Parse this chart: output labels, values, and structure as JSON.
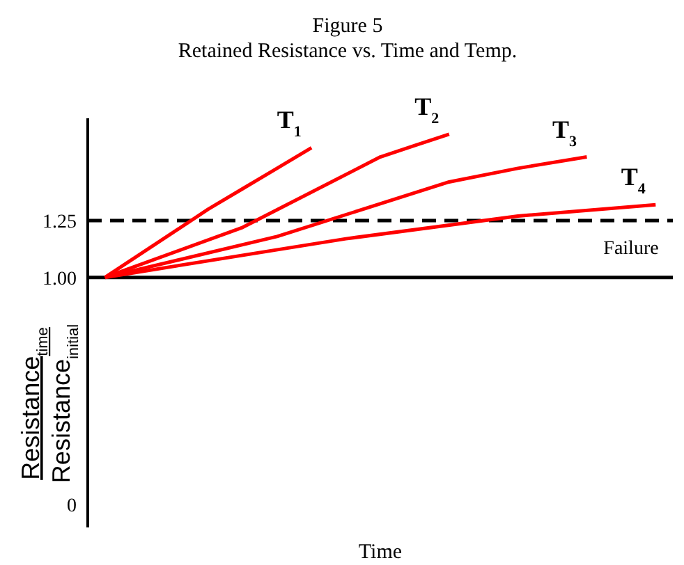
{
  "chart_data": {
    "type": "line",
    "title": "Figure 5",
    "subtitle": "Retained Resistance vs. Time and Temp.",
    "xlabel": "Time",
    "ylabel": "Resistance$_{time}$\nResistance$_{initial}$",
    "categories": [
      null,
      null,
      null,
      null,
      null,
      null,
      null,
      null,
      null,
      null,
      null,
      null,
      null,
      null,
      null,
      null,
      null
    ],
    "series": [
      {
        "name": "T$_{1}$",
        "color": "#ff0000",
        "values": [
          1.0,
          null,
          1.2,
          1.3,
          1.39,
          1.48,
          1.57,
          null,
          null,
          null,
          null,
          null,
          null,
          null,
          null,
          null,
          null
        ]
      },
      {
        "name": "T$_{2}$",
        "color": "#ff0000",
        "values": [
          1.0,
          null,
          null,
          null,
          1.22,
          null,
          null,
          null,
          1.53,
          1.58,
          1.63,
          null,
          null,
          null,
          null,
          null,
          null
        ]
      },
      {
        "name": "T$_{3}$",
        "color": "#ff0000",
        "values": [
          1.0,
          null,
          null,
          null,
          null,
          1.18,
          null,
          null,
          null,
          null,
          1.42,
          null,
          1.48,
          null,
          1.53,
          null,
          null
        ]
      },
      {
        "name": "T$_{4}$",
        "color": "#ff0000",
        "values": [
          1.0,
          null,
          null,
          null,
          null,
          null,
          null,
          1.17,
          null,
          null,
          null,
          null,
          1.27,
          null,
          null,
          null,
          1.32
        ]
      }
    ],
    "ylim": [
      -0.1,
      1.7
    ],
    "yticks": [
      {
        "value": 0,
        "label": "0"
      },
      {
        "value": 1.0,
        "label": "1.00"
      },
      {
        "value": 1.25,
        "label": "1.25"
      }
    ],
    "ref_lines": [
      {
        "axis": "y",
        "value": 1.25,
        "label": "Failure",
        "color": "#000000",
        "line_style": "dashed"
      },
      {
        "axis": "y",
        "value": 1.0,
        "label": null,
        "color": "#000000",
        "line_style": "solid"
      }
    ],
    "grid": false,
    "legend": false,
    "marker": "none",
    "line_style": "solid"
  }
}
